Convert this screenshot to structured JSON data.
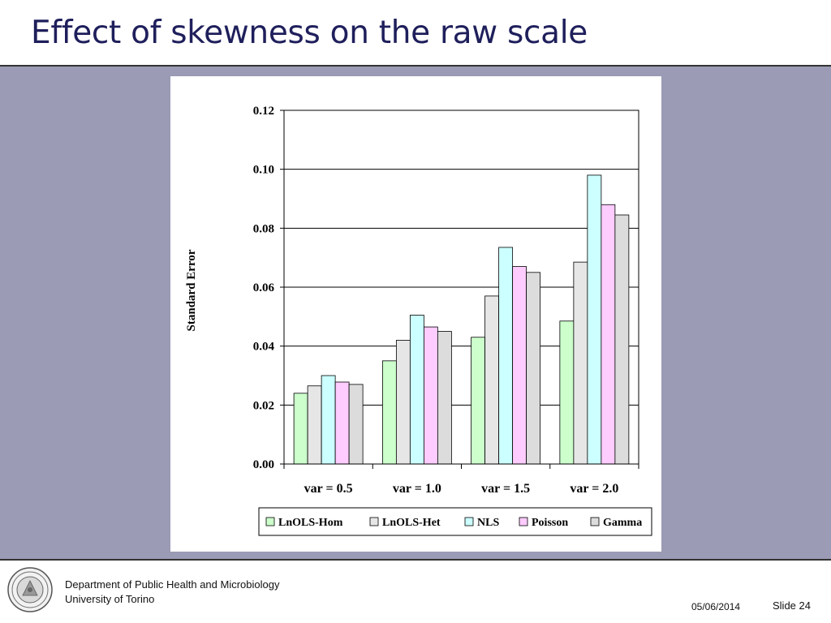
{
  "slide": {
    "title": "Effect of skewness on the raw scale"
  },
  "footer": {
    "department": "Department of Public Health and Microbiology",
    "university": "University of Torino",
    "date": "05/06/2014",
    "slide_number": "Slide 24",
    "logo_icon": "university-seal-icon"
  },
  "colors": {
    "title": "#1f1f5c",
    "band": "#9b9bb5"
  },
  "chart_data": {
    "type": "bar",
    "title": "",
    "xlabel": "",
    "ylabel": "Standard Error",
    "ylim": [
      0,
      0.12
    ],
    "yticks": [
      "0.00",
      "0.02",
      "0.04",
      "0.06",
      "0.08",
      "0.10",
      "0.12"
    ],
    "grid": true,
    "legend_position": "bottom",
    "categories": [
      "var = 0.5",
      "var = 1.0",
      "var = 1.5",
      "var = 2.0"
    ],
    "series": [
      {
        "name": "LnOLS-Hom",
        "color": "#ccffcc",
        "values": [
          0.024,
          0.035,
          0.043,
          0.0485
        ]
      },
      {
        "name": "LnOLS-Het",
        "color": "#e6e6e6",
        "values": [
          0.0265,
          0.042,
          0.057,
          0.0685
        ]
      },
      {
        "name": "NLS",
        "color": "#ccffff",
        "values": [
          0.03,
          0.0505,
          0.0735,
          0.098
        ]
      },
      {
        "name": "Poisson",
        "color": "#ffccff",
        "values": [
          0.0278,
          0.0465,
          0.067,
          0.088
        ]
      },
      {
        "name": "Gamma",
        "color": "#dcdcdc",
        "values": [
          0.027,
          0.045,
          0.065,
          0.0845
        ]
      }
    ]
  }
}
